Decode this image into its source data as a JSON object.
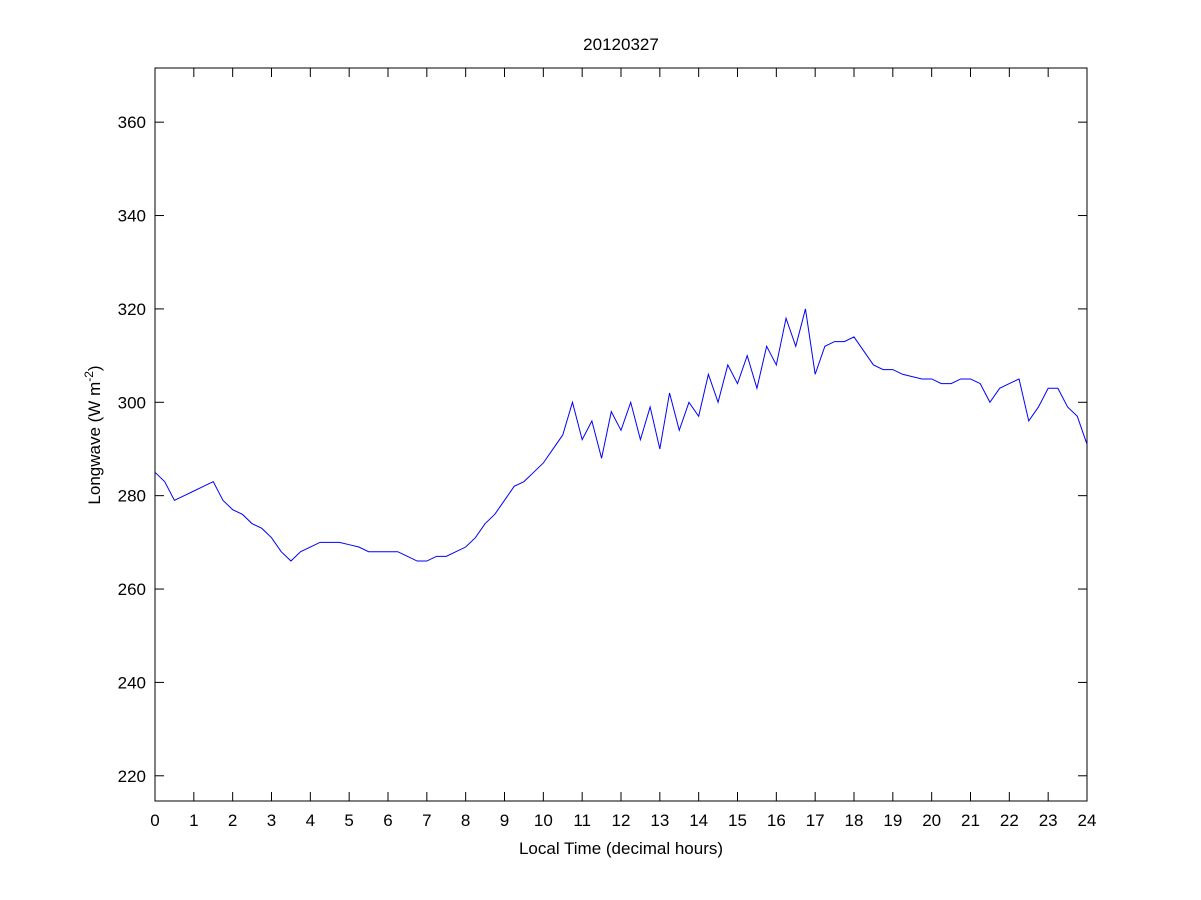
{
  "chart_data": {
    "type": "line",
    "title": "20120327",
    "xlabel": "Local Time (decimal hours)",
    "ylabel": "Longwave (W m",
    "ylabel_superscript": "-2",
    "ylabel_suffix": ")",
    "color": "#0000ff",
    "xlim": [
      0,
      24
    ],
    "xticks": [
      0,
      1,
      2,
      3,
      4,
      5,
      6,
      7,
      8,
      9,
      10,
      11,
      12,
      13,
      14,
      15,
      16,
      17,
      18,
      19,
      20,
      21,
      22,
      23,
      24
    ],
    "ylim": [
      214.6,
      371.6
    ],
    "yticks": [
      220,
      240,
      260,
      280,
      300,
      320,
      340,
      360
    ],
    "grid": false,
    "x": [
      0,
      0.25,
      0.5,
      0.75,
      1,
      1.25,
      1.5,
      1.75,
      2,
      2.25,
      2.5,
      2.75,
      3,
      3.25,
      3.5,
      3.75,
      4,
      4.25,
      4.5,
      4.75,
      5,
      5.25,
      5.5,
      5.75,
      6,
      6.25,
      6.5,
      6.75,
      7,
      7.25,
      7.5,
      7.75,
      8,
      8.25,
      8.5,
      8.75,
      9,
      9.25,
      9.5,
      9.75,
      10,
      10.25,
      10.5,
      10.75,
      11,
      11.25,
      11.5,
      11.75,
      12,
      12.25,
      12.5,
      12.75,
      13,
      13.25,
      13.5,
      13.75,
      14,
      14.25,
      14.5,
      14.75,
      15,
      15.25,
      15.5,
      15.75,
      16,
      16.25,
      16.5,
      16.75,
      17,
      17.25,
      17.5,
      17.75,
      18,
      18.25,
      18.5,
      18.75,
      19,
      19.25,
      19.5,
      19.75,
      20,
      20.25,
      20.5,
      20.75,
      21,
      21.25,
      21.5,
      21.75,
      22,
      22.25,
      22.5,
      22.75,
      23,
      23.25,
      23.5,
      23.75,
      24
    ],
    "values": [
      285,
      283,
      279,
      280,
      281,
      282,
      283,
      279,
      277,
      276,
      274,
      273,
      271,
      268,
      266,
      268,
      269,
      270,
      270,
      270,
      269.5,
      269,
      268,
      268,
      268,
      268,
      267,
      266,
      266,
      267,
      267,
      268,
      269,
      271,
      274,
      276,
      279,
      282,
      283,
      285,
      287,
      290,
      293,
      300,
      292,
      296,
      288,
      298,
      294,
      300,
      292,
      299,
      290,
      302,
      294,
      300,
      297,
      306,
      300,
      308,
      304,
      310,
      303,
      312,
      308,
      318,
      312,
      320,
      306,
      312,
      313,
      313,
      314,
      311,
      308,
      307,
      307,
      306,
      305.5,
      305,
      305,
      304,
      304,
      305,
      305,
      304,
      300,
      303,
      304,
      305,
      296,
      299,
      303,
      303,
      299,
      297,
      291
    ]
  }
}
